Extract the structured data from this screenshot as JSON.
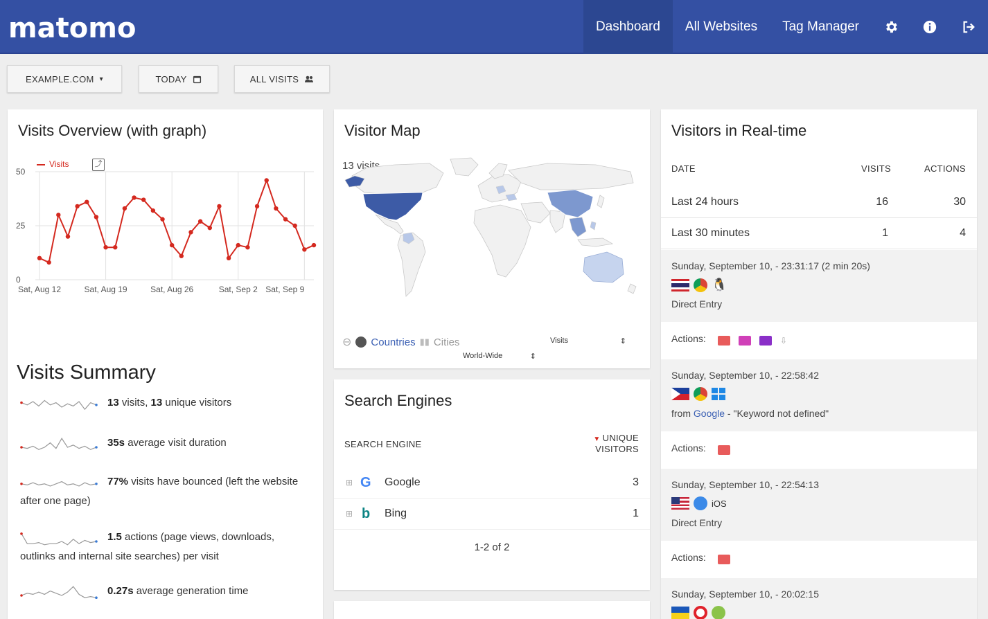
{
  "brand": {
    "logo": "matomo"
  },
  "nav": {
    "dashboard": "Dashboard",
    "all_websites": "All Websites",
    "tag_manager": "Tag Manager",
    "icons": [
      "gear-icon",
      "info-icon",
      "logout-icon"
    ]
  },
  "controls": {
    "site": "EXAMPLE.COM",
    "site_arrow": "▾",
    "period": "TODAY",
    "segment": "ALL VISITS"
  },
  "visits_overview": {
    "title": "Visits Overview (with graph)",
    "legend": "Visits",
    "chart_data": {
      "type": "line",
      "series": [
        {
          "name": "Visits",
          "values": [
            10,
            8,
            30,
            20,
            34,
            36,
            29,
            15,
            15,
            33,
            38,
            37,
            32,
            28,
            16,
            11,
            22,
            27,
            24,
            34,
            10,
            16,
            15,
            34,
            46,
            33,
            28,
            25,
            14,
            16
          ]
        }
      ],
      "ylim": [
        0,
        50
      ],
      "y_ticks": [
        "50",
        "25",
        "0"
      ],
      "x_ticks": [
        "Sat, Aug 12",
        "Sat, Aug 19",
        "Sat, Aug 26",
        "Sat, Sep 2",
        "Sat, Sep 9"
      ],
      "grid": true,
      "color": "#d4291f"
    }
  },
  "visits_summary": {
    "title": "Visits Summary",
    "rows": [
      {
        "bold": "13",
        "text1": " visits, ",
        "bold2": "13",
        "text2": " unique visitors"
      },
      {
        "bold": "35s",
        "text1": " average visit duration",
        "bold2": "",
        "text2": ""
      },
      {
        "bold": "77%",
        "text1": " visits have bounced (left the website after one page)",
        "bold2": "",
        "text2": ""
      },
      {
        "bold": "1.5",
        "text1": " actions (page views, downloads, outlinks and internal site searches) per visit",
        "bold2": "",
        "text2": ""
      },
      {
        "bold": "0.27s",
        "text1": " average generation time",
        "bold2": "",
        "text2": ""
      }
    ]
  },
  "visitor_map": {
    "title": "Visitor Map",
    "count": "13 visits",
    "countries": "Countries",
    "cities": "Cities",
    "metric": "Visits",
    "region": "World-Wide"
  },
  "search_engines": {
    "title": "Search Engines",
    "col_engine": "SEARCH ENGINE",
    "col_unique_1": "UNIQUE",
    "col_unique_2": "VISITORS",
    "rows": [
      {
        "name": "Google",
        "value": "3"
      },
      {
        "name": "Bing",
        "value": "1"
      }
    ],
    "pagination": "1-2 of 2"
  },
  "realtime": {
    "title": "Visitors in Real-time",
    "col_date": "DATE",
    "col_visits": "VISITS",
    "col_actions": "ACTIONS",
    "rows": [
      {
        "date": "Last 24 hours",
        "visits": "16",
        "actions": "30"
      },
      {
        "date": "Last 30 minutes",
        "visits": "1",
        "actions": "4"
      }
    ],
    "actions_label": "Actions:",
    "visits": [
      {
        "time": "Sunday, September 10, - 23:31:17 (2 min 20s)",
        "ref": "Direct Entry",
        "ref_prefix": "",
        "ref_link": "",
        "ref_suffix": ""
      },
      {
        "time": "Sunday, September 10, - 22:58:42",
        "ref": "",
        "ref_prefix": "from ",
        "ref_link": "Google",
        "ref_suffix": " - \"Keyword not defined\""
      },
      {
        "time": "Sunday, September 10, - 22:54:13",
        "ref": "Direct Entry",
        "ref_prefix": "",
        "ref_link": "",
        "ref_suffix": "",
        "os": "iOS"
      },
      {
        "time": "Sunday, September 10, - 20:02:15",
        "ref": "",
        "ref_prefix": "",
        "ref_link": "",
        "ref_suffix": ""
      }
    ]
  }
}
